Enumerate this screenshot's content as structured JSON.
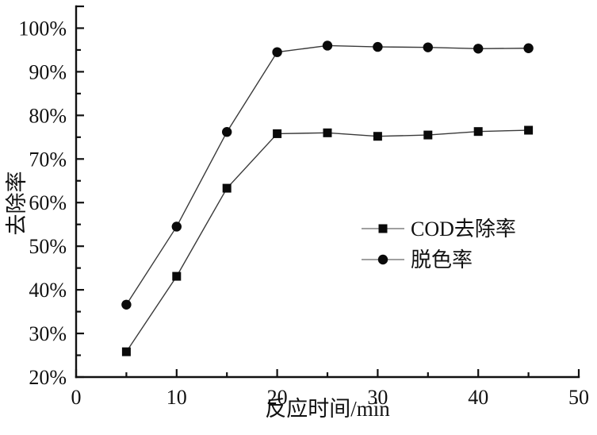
{
  "chart_data": {
    "type": "line",
    "title": "",
    "xlabel": "反应时间/min",
    "ylabel": "去除率",
    "x": [
      5,
      10,
      15,
      20,
      25,
      30,
      35,
      40,
      45
    ],
    "series": [
      {
        "id": "cod-removal",
        "name": "COD去除率",
        "marker": "square",
        "values": [
          25.8,
          43.1,
          63.3,
          75.8,
          76.0,
          75.2,
          75.5,
          76.3,
          76.6
        ]
      },
      {
        "id": "decolorization-rate",
        "name": "脱色率",
        "marker": "circle",
        "values": [
          36.6,
          54.5,
          76.2,
          94.5,
          96.0,
          95.7,
          95.6,
          95.3,
          95.4
        ]
      }
    ],
    "xlim": [
      0,
      50
    ],
    "ylim": [
      20,
      105
    ],
    "x_major_ticks": [
      0,
      10,
      20,
      30,
      40,
      50
    ],
    "x_minor_ticks": [
      5,
      15,
      25,
      35,
      45
    ],
    "y_major_ticks": [
      20,
      30,
      40,
      50,
      60,
      70,
      80,
      90,
      100
    ],
    "y_minor_ticks": [
      25,
      35,
      45,
      55,
      65,
      75,
      85,
      95
    ],
    "y_terminal_tick": 105,
    "y_tick_suffix": "%",
    "grid": false,
    "legend_position": "middle-right",
    "colors": {
      "axis": "#111111",
      "series_line": "#3a3a3a",
      "marker": "#0a0a0a",
      "legend_line": "#808080",
      "background": "#ffffff"
    }
  }
}
